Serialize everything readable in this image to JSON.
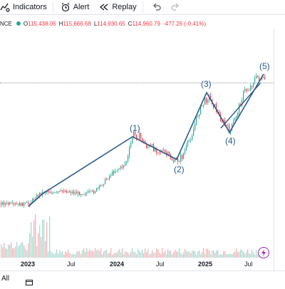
{
  "toolbar": {
    "indicators_label": "Indicators",
    "alert_label": "Alert",
    "replay_label": "Replay"
  },
  "legend": {
    "symbol": "NCE",
    "open_key": "O",
    "open": "115,438.06",
    "high_key": "H",
    "high": "115,666.68",
    "low_key": "L",
    "low": "114,930.65",
    "close_key": "C",
    "close": "114,960.79",
    "change": "-477.26 (-0.41%)"
  },
  "waves": {
    "w1": "(1)",
    "w2": "(2)",
    "w3": "(3)",
    "w4": "(4)",
    "w5": "(5)"
  },
  "time_axis": {
    "labels": [
      "2023",
      "Jul",
      "2024",
      "Jul",
      "2025",
      "Jul"
    ]
  },
  "range": {
    "label": "All"
  },
  "colors": {
    "up": "#22ab94",
    "down": "#f23645",
    "trendline": "#2a5a8c",
    "accent": "#9c27b0"
  },
  "icons": {
    "indicators": "indicators-icon",
    "alert": "alarm-clock-icon",
    "replay": "rewind-icon",
    "undo": "undo-icon",
    "redo": "redo-icon",
    "flash": "lightning-icon"
  }
}
